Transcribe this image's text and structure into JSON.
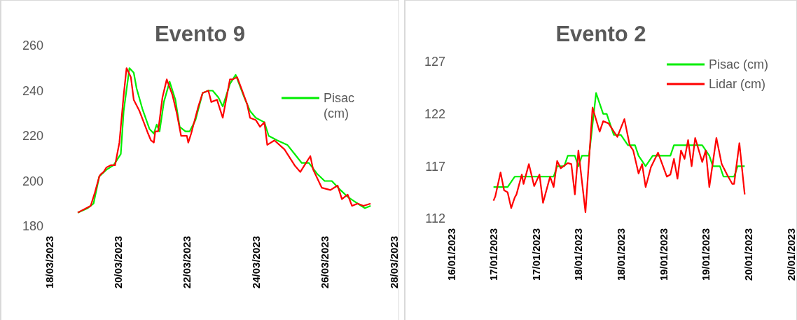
{
  "chart_data": [
    {
      "type": "line",
      "title": "Evento 9",
      "xlim": [
        "2023-03-18",
        "2023-03-28"
      ],
      "xticks": [
        {
          "value": "2023-03-18",
          "label": "18/03/2023"
        },
        {
          "value": "2023-03-20",
          "label": "20/03/2023"
        },
        {
          "value": "2023-03-22",
          "label": "22/03/2023"
        },
        {
          "value": "2023-03-24",
          "label": "24/03/2023"
        },
        {
          "value": "2023-03-26",
          "label": "26/03/2023"
        },
        {
          "value": "2023-03-28",
          "label": "28/03/2023"
        }
      ],
      "ylim": [
        180,
        260
      ],
      "yticks": [
        180,
        200,
        220,
        240,
        260
      ],
      "grid": false,
      "legend": "right",
      "marker": "none",
      "line_style": "solid",
      "series": [
        {
          "name": "Pisac (cm)",
          "color": "#00ee00",
          "x": [
            "2023-03-18T20:00",
            "2023-03-19T03:00",
            "2023-03-19T07:00",
            "2023-03-19T11:00",
            "2023-03-19T16:00",
            "2023-03-19T21:00",
            "2023-03-20T02:00",
            "2023-03-20T04:00",
            "2023-03-20T08:00",
            "2023-03-20T11:00",
            "2023-03-20T13:00",
            "2023-03-20T17:00",
            "2023-03-20T22:00",
            "2023-03-21T01:00",
            "2023-03-21T03:00",
            "2023-03-21T05:00",
            "2023-03-21T08:00",
            "2023-03-21T12:00",
            "2023-03-21T16:00",
            "2023-03-21T19:00",
            "2023-03-21T23:00",
            "2023-03-22T02:00",
            "2023-03-22T06:00",
            "2023-03-22T11:00",
            "2023-03-22T15:00",
            "2023-03-22T18:00",
            "2023-03-22T22:00",
            "2023-03-23T01:00",
            "2023-03-23T06:00",
            "2023-03-23T10:00",
            "2023-03-23T16:00",
            "2023-03-23T20:00",
            "2023-03-24T00:00",
            "2023-03-24T06:00",
            "2023-03-24T09:00",
            "2023-03-24T15:00",
            "2023-03-24T22:00",
            "2023-03-25T03:00",
            "2023-03-25T08:00",
            "2023-03-25T13:00",
            "2023-03-25T19:00",
            "2023-03-26T00:00",
            "2023-03-26T05:00",
            "2023-03-26T11:00",
            "2023-03-26T16:00",
            "2023-03-26T23:00",
            "2023-03-27T04:00",
            "2023-03-27T08:00"
          ],
          "values": [
            186,
            188,
            190,
            202,
            205,
            207,
            212,
            231,
            250,
            248,
            241,
            232,
            223,
            221,
            225,
            222,
            235,
            244,
            236,
            224,
            222,
            222,
            227,
            239,
            240,
            240,
            237,
            233,
            243,
            247,
            237,
            231,
            228,
            226,
            220,
            218,
            216,
            212,
            208,
            208,
            203,
            200,
            200,
            196,
            193,
            190,
            188,
            189
          ]
        },
        {
          "color": "#ff0000",
          "x": [
            "2023-03-18T20:00",
            "2023-03-19T05:00",
            "2023-03-19T08:00",
            "2023-03-19T11:00",
            "2023-03-19T12:00",
            "2023-03-19T14:00",
            "2023-03-19T16:00",
            "2023-03-19T19:00",
            "2023-03-19T22:00",
            "2023-03-20T01:00",
            "2023-03-20T04:00",
            "2023-03-20T06:00",
            "2023-03-20T09:00",
            "2023-03-20T11:00",
            "2023-03-20T15:00",
            "2023-03-20T18:00",
            "2023-03-20T21:00",
            "2023-03-20T23:00",
            "2023-03-21T01:00",
            "2023-03-21T02:00",
            "2023-03-21T04:00",
            "2023-03-21T07:00",
            "2023-03-21T10:00",
            "2023-03-21T14:00",
            "2023-03-21T17:00",
            "2023-03-21T20:00",
            "2023-03-22T00:00",
            "2023-03-22T01:00",
            "2023-03-22T03:00",
            "2023-03-22T08:00",
            "2023-03-22T11:00",
            "2023-03-22T15:00",
            "2023-03-22T17:00",
            "2023-03-22T21:00",
            "2023-03-22T23:00",
            "2023-03-23T01:00",
            "2023-03-23T06:00",
            "2023-03-23T08:00",
            "2023-03-23T11:00",
            "2023-03-23T14:00",
            "2023-03-23T18:00",
            "2023-03-23T20:00",
            "2023-03-24T00:00",
            "2023-03-24T03:00",
            "2023-03-24T06:00",
            "2023-03-24T08:00",
            "2023-03-24T13:00",
            "2023-03-24T20:00",
            "2023-03-25T03:00",
            "2023-03-25T07:00",
            "2023-03-25T10:00",
            "2023-03-25T14:00",
            "2023-03-25T16:00",
            "2023-03-25T22:00",
            "2023-03-26T04:00",
            "2023-03-26T09:00",
            "2023-03-26T12:00",
            "2023-03-26T16:00",
            "2023-03-26T19:00",
            "2023-03-26T23:00",
            "2023-03-27T03:00",
            "2023-03-27T08:00"
          ],
          "values": [
            186,
            189,
            195,
            202,
            203,
            204,
            206,
            207,
            207,
            217,
            238,
            250,
            246,
            236,
            231,
            226,
            221,
            218,
            217,
            222,
            222,
            237,
            245,
            238,
            230,
            220,
            220,
            217,
            221,
            233,
            239,
            240,
            235,
            236,
            232,
            228,
            245,
            245,
            246,
            241,
            234,
            228,
            227,
            224,
            226,
            216,
            218,
            214,
            207,
            204,
            207,
            211,
            205,
            197,
            196,
            198,
            192,
            194,
            189,
            190,
            189,
            190
          ]
        }
      ]
    },
    {
      "type": "line",
      "title": "Evento 2",
      "xlim": [
        "2023-01-16T12:00",
        "2023-01-20T12:00"
      ],
      "xticks": [
        {
          "value": "2023-01-16T12:00",
          "label": "16/01/2023"
        },
        {
          "value": "2023-01-17T00:00",
          "label": "17/01/2023"
        },
        {
          "value": "2023-01-17T12:00",
          "label": "17/01/2023"
        },
        {
          "value": "2023-01-18T00:00",
          "label": "18/01/2023"
        },
        {
          "value": "2023-01-18T12:00",
          "label": "18/01/2023"
        },
        {
          "value": "2023-01-19T00:00",
          "label": "19/01/2023"
        },
        {
          "value": "2023-01-19T12:00",
          "label": "19/01/2023"
        },
        {
          "value": "2023-01-20T00:00",
          "label": "20/01/2023"
        },
        {
          "value": "2023-01-20T12:00",
          "label": "20/01/2023"
        }
      ],
      "ylim": [
        112,
        127
      ],
      "yticks": [
        112,
        117,
        122,
        127
      ],
      "grid": false,
      "legend": "top right",
      "marker": "none",
      "line_style": "solid",
      "series": [
        {
          "name": "Pisac (cm)",
          "color": "#00ee00",
          "x": [
            "2023-01-17T00:00",
            "2023-01-17T04:00",
            "2023-01-17T06:00",
            "2023-01-17T17:00",
            "2023-01-17T18:00",
            "2023-01-17T20:00",
            "2023-01-17T21:00",
            "2023-01-17T23:00",
            "2023-01-18T00:00",
            "2023-01-18T01:00",
            "2023-01-18T03:00",
            "2023-01-18T05:00",
            "2023-01-18T07:00",
            "2023-01-18T08:00",
            "2023-01-18T10:00",
            "2023-01-18T12:00",
            "2023-01-18T14:00",
            "2023-01-18T16:00",
            "2023-01-18T17:00",
            "2023-01-18T19:00",
            "2023-01-18T21:00",
            "2023-01-19T02:00",
            "2023-01-19T03:00",
            "2023-01-19T11:00",
            "2023-01-19T13:00",
            "2023-01-19T14:00",
            "2023-01-19T16:00",
            "2023-01-19T17:00",
            "2023-01-19T20:00",
            "2023-01-19T21:00",
            "2023-01-19T23:00"
          ],
          "values": [
            115,
            115,
            116,
            116,
            117,
            117,
            118,
            118,
            117,
            118,
            118,
            124,
            122,
            122,
            120,
            120,
            119,
            119,
            118,
            117,
            118,
            118,
            119,
            119,
            118,
            117,
            117,
            116,
            116,
            117,
            117
          ]
        },
        {
          "name": "Lidar (cm)",
          "color": "#ff0000",
          "x": [
            "2023-01-17T00:00",
            "2023-01-17T00:30",
            "2023-01-17T02:00",
            "2023-01-17T03:00",
            "2023-01-17T04:00",
            "2023-01-17T05:00",
            "2023-01-17T06:00",
            "2023-01-17T06:30",
            "2023-01-17T08:00",
            "2023-01-17T08:30",
            "2023-01-17T10:00",
            "2023-01-17T11:30",
            "2023-01-17T13:00",
            "2023-01-17T14:00",
            "2023-01-17T16:00",
            "2023-01-17T17:00",
            "2023-01-17T18:00",
            "2023-01-17T19:00",
            "2023-01-17T21:00",
            "2023-01-17T22:00",
            "2023-01-17T23:00",
            "2023-01-18T00:00",
            "2023-01-18T02:00",
            "2023-01-18T04:00",
            "2023-01-18T06:00",
            "2023-01-18T07:00",
            "2023-01-18T08:30",
            "2023-01-18T11:00",
            "2023-01-18T13:00",
            "2023-01-18T14:30",
            "2023-01-18T15:30",
            "2023-01-18T17:00",
            "2023-01-18T18:00",
            "2023-01-18T19:00",
            "2023-01-18T20:30",
            "2023-01-18T22:30",
            "2023-01-19T01:00",
            "2023-01-19T02:00",
            "2023-01-19T03:00",
            "2023-01-19T04:00",
            "2023-01-19T05:00",
            "2023-01-19T06:00",
            "2023-01-19T07:00",
            "2023-01-19T08:00",
            "2023-01-19T09:00",
            "2023-01-19T11:00",
            "2023-01-19T12:00",
            "2023-01-19T13:00",
            "2023-01-19T15:00",
            "2023-01-19T16:30",
            "2023-01-19T18:00",
            "2023-01-19T19:30",
            "2023-01-19T20:00",
            "2023-01-19T21:30",
            "2023-01-19T23:00"
          ],
          "values": [
            113.7,
            114.1,
            116.4,
            114.7,
            114.5,
            113,
            114,
            114.3,
            116.2,
            115.3,
            117.2,
            115.1,
            116.2,
            113.5,
            116,
            115,
            117.5,
            116.8,
            117.3,
            117.2,
            114.3,
            118.5,
            112.6,
            122.6,
            120.3,
            121.3,
            121.1,
            119.8,
            121.5,
            119,
            118.5,
            116.3,
            117.2,
            115,
            116.9,
            118.3,
            116,
            116.2,
            117.7,
            115.8,
            118.5,
            117.7,
            119.5,
            117,
            119.7,
            117.4,
            118.5,
            115,
            119.7,
            117.2,
            116.2,
            115.3,
            115.3,
            119.2,
            114.3
          ]
        }
      ]
    }
  ]
}
